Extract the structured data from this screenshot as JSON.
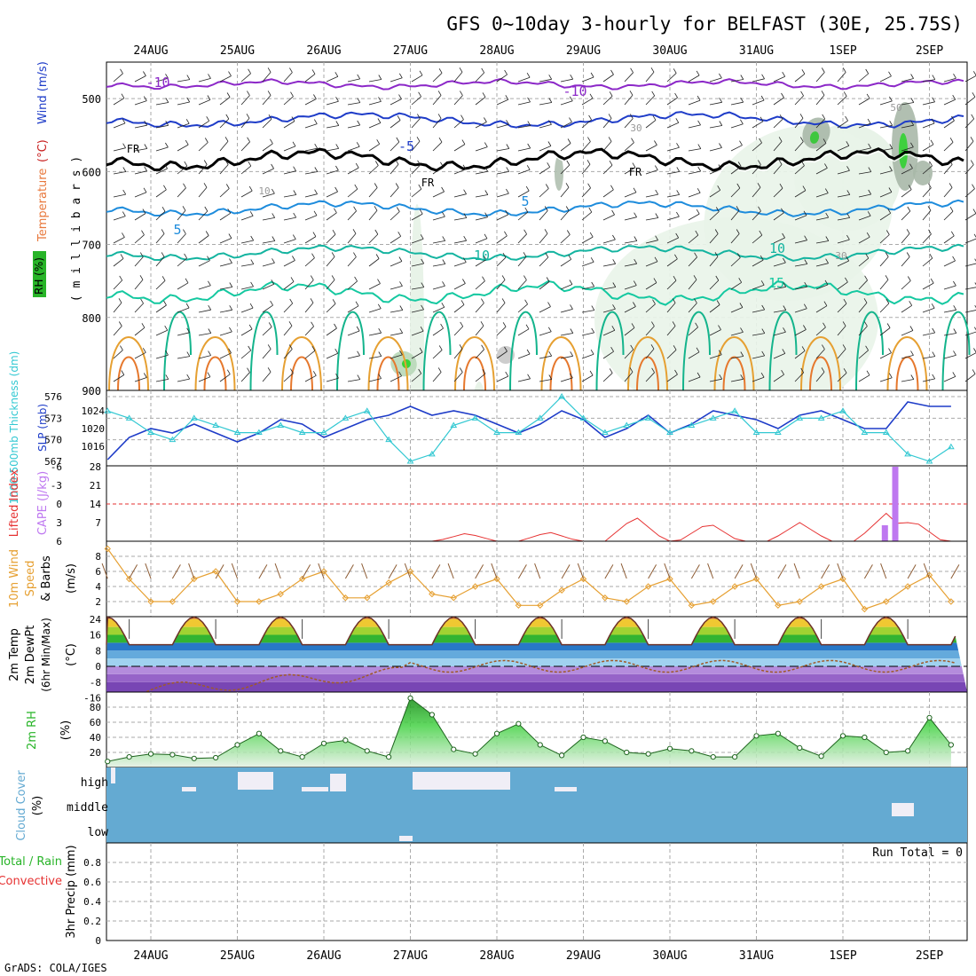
{
  "title": "GFS 0~10day 3-hourly for BELFAST (30E, 25.75S)",
  "footer": "GrADS: COLA/IGES",
  "dates": [
    "24AUG",
    "25AUG",
    "26AUG",
    "27AUG",
    "28AUG",
    "29AUG",
    "30AUG",
    "31AUG",
    "1SEP",
    "2SEP"
  ],
  "colors": {
    "temperature_zero": "#1e3cd2",
    "temperature_warm": "#14b4a0",
    "thickness": "#32c8d2",
    "slp": "#1e3cc8",
    "lifted_index": "#e63232",
    "cape": "#be78f0",
    "wind": "#e6a032",
    "rh": "#28b428",
    "cloud": "#64aad2"
  },
  "panels": {
    "upper": {
      "ylabel_parts": [
        "RH (%)",
        "Temperature",
        "(°C)",
        "Wind (m/s)"
      ],
      "axis_name": "( m i l l i b a r s )",
      "yticks": [
        "500",
        "600",
        "700",
        "800",
        "900"
      ],
      "contour_labels": [
        "-10",
        "-10",
        "-5",
        "FR",
        "FR",
        "FR",
        "5",
        "5",
        "10",
        "10",
        "15",
        "10",
        "30",
        "50",
        "30"
      ]
    },
    "slp": {
      "ylabel_thickness": "1000-500mb Thickness (dm)",
      "ylabel_slp": "SLP (mb)",
      "left_ticks": [
        "576",
        "573",
        "570",
        "567"
      ],
      "right_ticks": [
        "1024",
        "1020",
        "1016"
      ]
    },
    "cape": {
      "ylabel_li": "Lifted Index",
      "ylabel_cape": "CAPE (J/kg)",
      "left_ticks": [
        "-6",
        "-3",
        "0",
        "3",
        "6"
      ],
      "right_ticks": [
        "28",
        "21",
        "14",
        "7"
      ]
    },
    "wind10": {
      "ylabel": [
        "10m Wind",
        "Speed",
        "& Barbs",
        "(m/s)"
      ],
      "yticks": [
        "8",
        "6",
        "4",
        "2"
      ]
    },
    "temp2m": {
      "ylabel": [
        "2m Temp",
        "2m DewPt",
        "(6hr Min/Max)",
        "(°C)"
      ],
      "yticks": [
        "24",
        "16",
        "8",
        "0",
        "-8",
        "-16"
      ]
    },
    "rh2m": {
      "ylabel": [
        "2m RH",
        "(%)"
      ],
      "yticks": [
        "80",
        "60",
        "40",
        "20"
      ]
    },
    "cloud": {
      "ylabel": [
        "Cloud Cover",
        "(%)"
      ],
      "levels": [
        "high",
        "middle",
        "low"
      ]
    },
    "precip": {
      "ylabel": [
        "Total / Rain",
        "Convective",
        "3hr Precip (mm)"
      ],
      "yticks": [
        "0.8",
        "0.6",
        "0.4",
        "0.2",
        "0"
      ],
      "run_total": "Run Total = 0"
    }
  },
  "chart_data": [
    {
      "type": "line",
      "title": "2m RH",
      "x_unit": "days since 24AUG 00Z",
      "series": [
        {
          "name": "2m RH (%)",
          "x": [
            -0.5,
            -0.25,
            0,
            0.25,
            0.5,
            0.75,
            1,
            1.25,
            1.5,
            1.75,
            2,
            2.25,
            2.5,
            2.75,
            3,
            3.25,
            3.5,
            3.75,
            4,
            4.25,
            4.5,
            4.75,
            5,
            5.25,
            5.5,
            5.75,
            6,
            6.25,
            6.5,
            6.75,
            7,
            7.25,
            7.5,
            7.75,
            8,
            8.25,
            8.5,
            8.75,
            9,
            9.25
          ],
          "values": [
            8,
            14,
            18,
            17,
            12,
            13,
            30,
            45,
            22,
            14,
            32,
            36,
            22,
            14,
            92,
            70,
            24,
            18,
            45,
            58,
            30,
            16,
            40,
            35,
            20,
            18,
            25,
            22,
            14,
            14,
            42,
            45,
            26,
            15,
            42,
            40,
            20,
            22,
            66,
            30
          ]
        }
      ]
    },
    {
      "type": "line",
      "title": "10m Wind Speed",
      "x_unit": "days since 24AUG 00Z",
      "series": [
        {
          "name": "10m wind speed (m/s)",
          "x": [
            -0.5,
            -0.25,
            0,
            0.25,
            0.5,
            0.75,
            1,
            1.25,
            1.5,
            1.75,
            2,
            2.25,
            2.5,
            2.75,
            3,
            3.25,
            3.5,
            3.75,
            4,
            4.25,
            4.5,
            4.75,
            5,
            5.25,
            5.5,
            5.75,
            6,
            6.25,
            6.5,
            6.75,
            7,
            7.25,
            7.5,
            7.75,
            8,
            8.25,
            8.5,
            8.75,
            9,
            9.25
          ],
          "values": [
            9,
            5,
            2,
            2,
            5,
            6,
            2,
            2,
            3,
            5,
            6,
            2.5,
            2.5,
            4.5,
            6,
            3,
            2.5,
            4,
            5,
            1.5,
            1.5,
            3.5,
            5,
            2.5,
            2,
            4,
            5,
            1.5,
            2,
            4,
            5,
            1.5,
            2,
            4,
            5,
            1,
            2,
            4,
            5.5,
            2
          ]
        }
      ]
    },
    {
      "type": "line",
      "title": "SLP / Thickness",
      "x_unit": "days since 24AUG 00Z",
      "series": [
        {
          "name": "SLP (mb)",
          "x": [
            -0.5,
            -0.25,
            0,
            0.25,
            0.5,
            0.75,
            1,
            1.25,
            1.5,
            1.75,
            2,
            2.25,
            2.5,
            2.75,
            3,
            3.25,
            3.5,
            3.75,
            4,
            4.25,
            4.5,
            4.75,
            5,
            5.25,
            5.5,
            5.75,
            6,
            6.25,
            6.5,
            6.75,
            7,
            7.25,
            7.5,
            7.75,
            8,
            8.25,
            8.5,
            8.75,
            9,
            9.25
          ],
          "values": [
            1013,
            1018,
            1020,
            1019,
            1021,
            1019,
            1017,
            1019,
            1022,
            1021,
            1018,
            1020,
            1022,
            1023,
            1025,
            1023,
            1024,
            1023,
            1021,
            1019,
            1021,
            1024,
            1022,
            1018,
            1020,
            1023,
            1019,
            1021,
            1024,
            1023,
            1022,
            1020,
            1023,
            1024,
            1022,
            1020,
            1020,
            1026,
            1025,
            1025
          ]
        },
        {
          "name": "1000-500mb Thickness (dm)",
          "x": [
            -0.5,
            -0.25,
            0,
            0.25,
            0.5,
            0.75,
            1,
            1.25,
            1.5,
            1.75,
            2,
            2.25,
            2.5,
            2.75,
            3,
            3.25,
            3.5,
            3.75,
            4,
            4.25,
            4.5,
            4.75,
            5,
            5.25,
            5.5,
            5.75,
            6,
            6.25,
            6.5,
            6.75,
            7,
            7.25,
            7.5,
            7.75,
            8,
            8.25,
            8.5,
            8.75,
            9,
            9.25
          ],
          "values": [
            574,
            573,
            571,
            570,
            573,
            572,
            571,
            571,
            572,
            571,
            571,
            573,
            574,
            570,
            567,
            568,
            572,
            573,
            571,
            571,
            573,
            576,
            573,
            571,
            572,
            573,
            571,
            572,
            573,
            574,
            571,
            571,
            573,
            573,
            574,
            571,
            571,
            568,
            567,
            569
          ]
        }
      ]
    }
  ]
}
